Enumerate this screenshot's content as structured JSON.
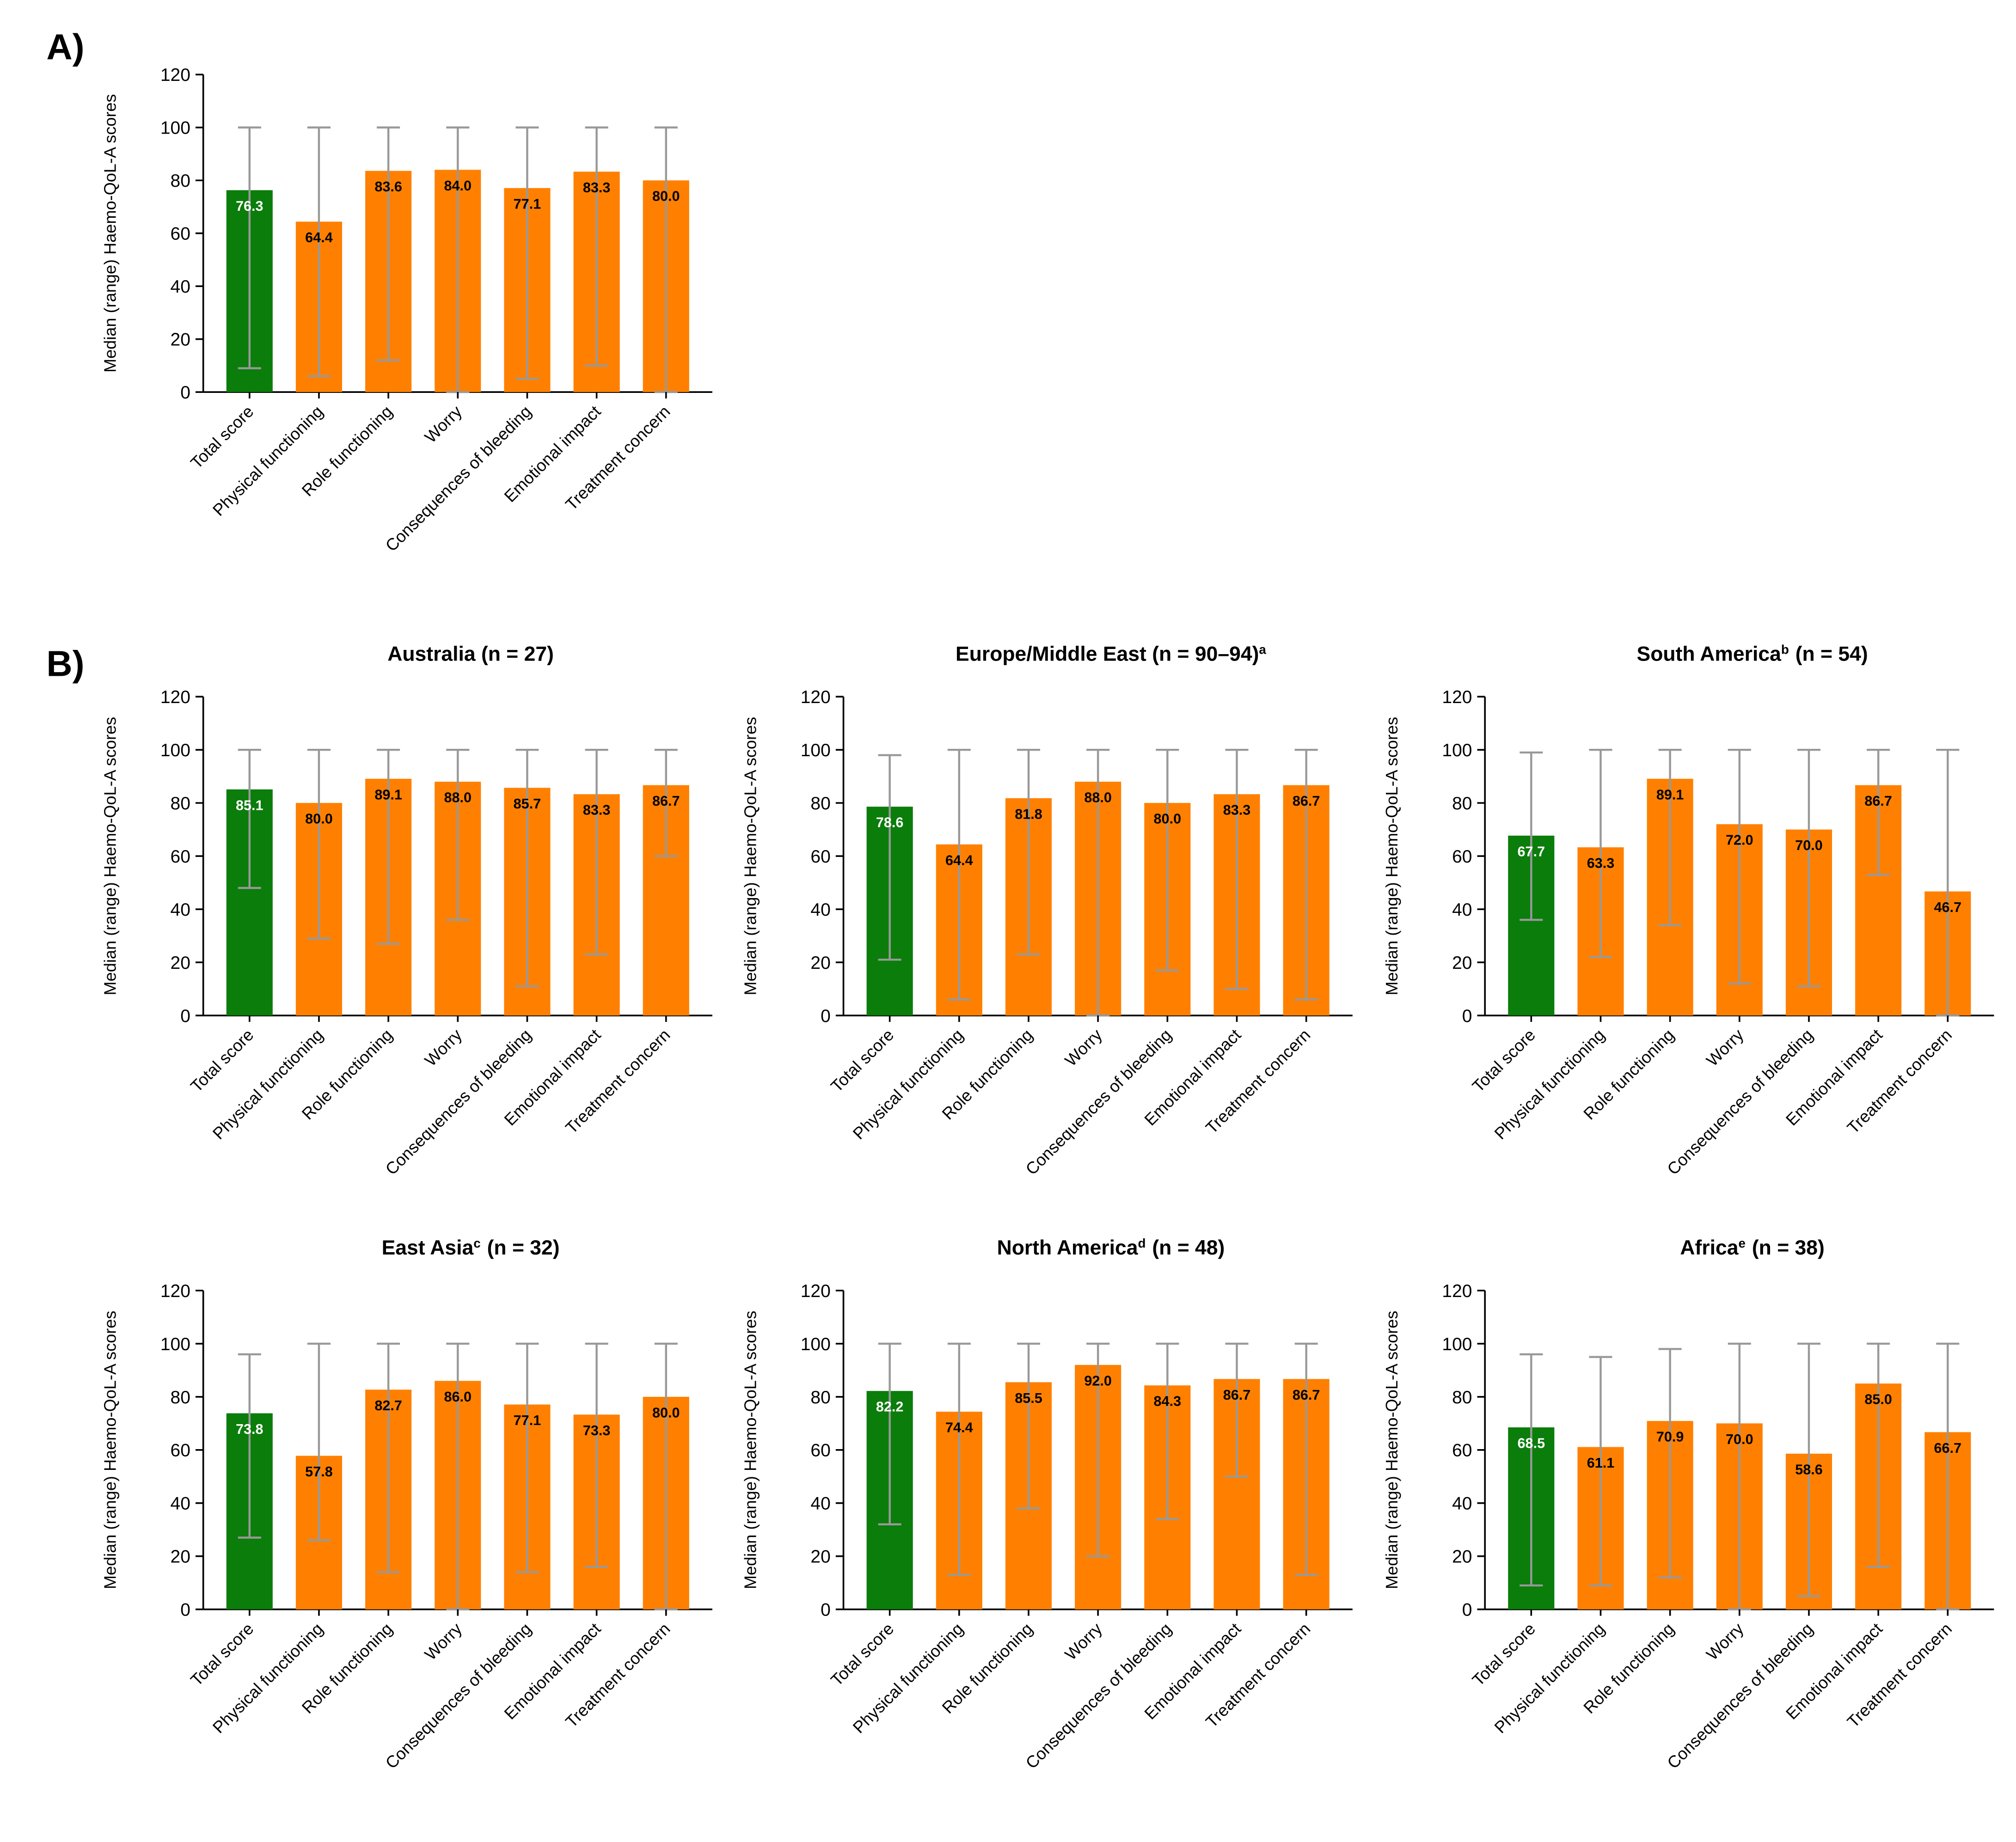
{
  "panels": [
    "A)",
    "B)"
  ],
  "chart_data": [
    {
      "type": "bar",
      "y_label": "Median (range) Haemo-QoL-A scores",
      "categories": [
        "Total score",
        "Physical functioning",
        "Role functioning",
        "Worry",
        "Consequences of bleeding",
        "Emotional impact",
        "Treatment concern"
      ],
      "colors": [
        "#0a7d0a",
        "#ff8000",
        "#ff8000",
        "#ff8000",
        "#ff8000",
        "#ff8000",
        "#ff8000"
      ],
      "values": [
        76.3,
        64.4,
        83.6,
        84.0,
        77.1,
        83.3,
        80.0
      ],
      "value_labels": [
        "76.3",
        "64.4",
        "83.6",
        "84.0",
        "77.1",
        "83.3",
        "80.0"
      ],
      "low": [
        9,
        6,
        12,
        0,
        5,
        10,
        0
      ],
      "high": [
        100,
        100,
        100,
        100,
        100,
        100,
        100
      ],
      "ylim": [
        0,
        120
      ],
      "yticks": [
        0,
        20,
        40,
        60,
        80,
        100,
        120
      ]
    },
    {
      "type": "bar",
      "title": [
        {
          "text": "Australia (n = 27)"
        }
      ],
      "y_label": "Median (range) Haemo-QoL-A scores",
      "categories": [
        "Total score",
        "Physical functioning",
        "Role functioning",
        "Worry",
        "Consequences of bleeding",
        "Emotional impact",
        "Treatment concern"
      ],
      "colors": [
        "#0a7d0a",
        "#ff8000",
        "#ff8000",
        "#ff8000",
        "#ff8000",
        "#ff8000",
        "#ff8000"
      ],
      "values": [
        85.1,
        80.0,
        89.1,
        88.0,
        85.7,
        83.3,
        86.7
      ],
      "value_labels": [
        "85.1",
        "80.0",
        "89.1",
        "88.0",
        "85.7",
        "83.3",
        "86.7"
      ],
      "low": [
        48,
        29,
        27,
        36,
        11,
        23,
        60
      ],
      "high": [
        100,
        100,
        100,
        100,
        100,
        100,
        100
      ],
      "ylim": [
        0,
        120
      ],
      "yticks": [
        0,
        20,
        40,
        60,
        80,
        100,
        120
      ]
    },
    {
      "type": "bar",
      "title": [
        {
          "text": "Europe/Middle East (n = 90–94)"
        },
        {
          "text": "a",
          "sup": true
        }
      ],
      "y_label": "Median (range) Haemo-QoL-A scores",
      "categories": [
        "Total score",
        "Physical functioning",
        "Role functioning",
        "Worry",
        "Consequences of bleeding",
        "Emotional impact",
        "Treatment concern"
      ],
      "colors": [
        "#0a7d0a",
        "#ff8000",
        "#ff8000",
        "#ff8000",
        "#ff8000",
        "#ff8000",
        "#ff8000"
      ],
      "values": [
        78.6,
        64.4,
        81.8,
        88.0,
        80.0,
        83.3,
        86.7
      ],
      "value_labels": [
        "78.6",
        "64.4",
        "81.8",
        "88.0",
        "80.0",
        "83.3",
        "86.7"
      ],
      "low": [
        21,
        6,
        23,
        0,
        17,
        10,
        6
      ],
      "high": [
        98,
        100,
        100,
        100,
        100,
        100,
        100
      ],
      "ylim": [
        0,
        120
      ],
      "yticks": [
        0,
        20,
        40,
        60,
        80,
        100,
        120
      ]
    },
    {
      "type": "bar",
      "title": [
        {
          "text": "South America"
        },
        {
          "text": "b",
          "sup": true
        },
        {
          "text": "(n = 54)"
        }
      ],
      "y_label": "Median (range) Haemo-QoL-A scores",
      "categories": [
        "Total score",
        "Physical functioning",
        "Role functioning",
        "Worry",
        "Consequences of bleeding",
        "Emotional impact",
        "Treatment concern"
      ],
      "colors": [
        "#0a7d0a",
        "#ff8000",
        "#ff8000",
        "#ff8000",
        "#ff8000",
        "#ff8000",
        "#ff8000"
      ],
      "values": [
        67.7,
        63.3,
        89.1,
        72.0,
        70.0,
        86.7,
        46.7
      ],
      "value_labels": [
        "67.7",
        "63.3",
        "89.1",
        "72.0",
        "70.0",
        "86.7",
        "46.7"
      ],
      "low": [
        36,
        22,
        34,
        12,
        11,
        53,
        0
      ],
      "high": [
        99,
        100,
        100,
        100,
        100,
        100,
        100
      ],
      "ylim": [
        0,
        120
      ],
      "yticks": [
        0,
        20,
        40,
        60,
        80,
        100,
        120
      ]
    },
    {
      "type": "bar",
      "title": [
        {
          "text": "East Asia"
        },
        {
          "text": "c",
          "sup": true
        },
        {
          "text": "(n = 32)"
        }
      ],
      "y_label": "Median (range) Haemo-QoL-A scores",
      "categories": [
        "Total score",
        "Physical functioning",
        "Role functioning",
        "Worry",
        "Consequences of bleeding",
        "Emotional impact",
        "Treatment concern"
      ],
      "colors": [
        "#0a7d0a",
        "#ff8000",
        "#ff8000",
        "#ff8000",
        "#ff8000",
        "#ff8000",
        "#ff8000"
      ],
      "values": [
        73.8,
        57.8,
        82.7,
        86.0,
        77.1,
        73.3,
        80.0
      ],
      "value_labels": [
        "73.8",
        "57.8",
        "82.7",
        "86.0",
        "77.1",
        "73.3",
        "80.0"
      ],
      "low": [
        27,
        26,
        14,
        0,
        14,
        16,
        0
      ],
      "high": [
        96,
        100,
        100,
        100,
        100,
        100,
        100
      ],
      "ylim": [
        0,
        120
      ],
      "yticks": [
        0,
        20,
        40,
        60,
        80,
        100,
        120
      ]
    },
    {
      "type": "bar",
      "title": [
        {
          "text": "North America"
        },
        {
          "text": "d",
          "sup": true
        },
        {
          "text": "(n = 48)"
        }
      ],
      "y_label": "Median (range) Haemo-QoL-A scores",
      "categories": [
        "Total score",
        "Physical functioning",
        "Role functioning",
        "Worry",
        "Consequences of bleeding",
        "Emotional impact",
        "Treatment concern"
      ],
      "colors": [
        "#0a7d0a",
        "#ff8000",
        "#ff8000",
        "#ff8000",
        "#ff8000",
        "#ff8000",
        "#ff8000"
      ],
      "values": [
        82.2,
        74.4,
        85.5,
        92.0,
        84.3,
        86.7,
        86.7
      ],
      "value_labels": [
        "82.2",
        "74.4",
        "85.5",
        "92.0",
        "84.3",
        "86.7",
        "86.7"
      ],
      "low": [
        32,
        13,
        38,
        20,
        34,
        50,
        13
      ],
      "high": [
        100,
        100,
        100,
        100,
        100,
        100,
        100
      ],
      "ylim": [
        0,
        120
      ],
      "yticks": [
        0,
        20,
        40,
        60,
        80,
        100,
        120
      ]
    },
    {
      "type": "bar",
      "title": [
        {
          "text": "Africa"
        },
        {
          "text": "e",
          "sup": true
        },
        {
          "text": "(n = 38)"
        }
      ],
      "y_label": "Median (range) Haemo-QoL-A scores",
      "categories": [
        "Total score",
        "Physical functioning",
        "Role functioning",
        "Worry",
        "Consequences of bleeding",
        "Emotional impact",
        "Treatment concern"
      ],
      "colors": [
        "#0a7d0a",
        "#ff8000",
        "#ff8000",
        "#ff8000",
        "#ff8000",
        "#ff8000",
        "#ff8000"
      ],
      "values": [
        68.5,
        61.1,
        70.9,
        70.0,
        58.6,
        85.0,
        66.7
      ],
      "value_labels": [
        "68.5",
        "61.1",
        "70.9",
        "70.0",
        "58.6",
        "85.0",
        "66.7"
      ],
      "low": [
        9,
        9,
        12,
        0,
        5,
        16,
        0
      ],
      "high": [
        96,
        95,
        98,
        100,
        100,
        100,
        100
      ],
      "ylim": [
        0,
        120
      ],
      "yticks": [
        0,
        20,
        40,
        60,
        80,
        100,
        120
      ]
    }
  ]
}
